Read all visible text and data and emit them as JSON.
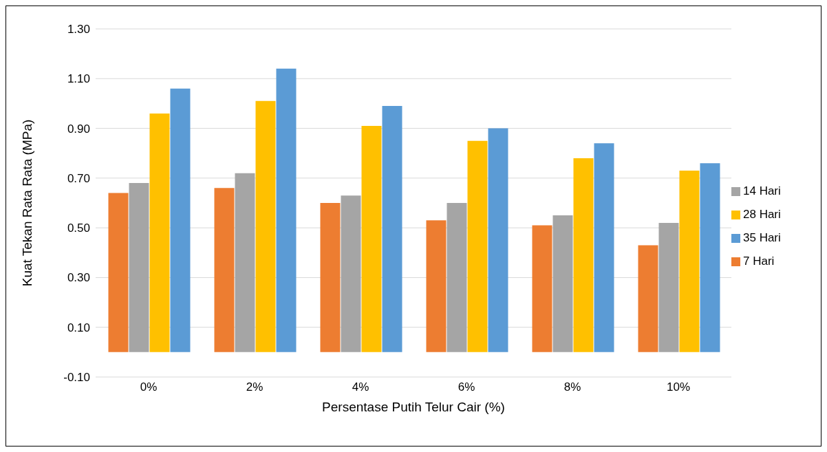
{
  "chart_data": {
    "type": "bar",
    "xlabel": "Persentase Putih Telur Cair (%)",
    "ylabel": "Kuat Tekan Rata Rata (MPa)",
    "categories": [
      "0%",
      "2%",
      "4%",
      "6%",
      "8%",
      "10%"
    ],
    "series": [
      {
        "name": "7 Hari",
        "color": "#ed7d31",
        "values": [
          0.64,
          0.66,
          0.6,
          0.53,
          0.51,
          0.43
        ]
      },
      {
        "name": "14 Hari",
        "color": "#a5a5a5",
        "values": [
          0.68,
          0.72,
          0.63,
          0.6,
          0.55,
          0.52
        ]
      },
      {
        "name": "28 Hari",
        "color": "#ffc000",
        "values": [
          0.96,
          1.01,
          0.91,
          0.85,
          0.78,
          0.73
        ]
      },
      {
        "name": "35 Hari",
        "color": "#5b9bd5",
        "values": [
          1.06,
          1.14,
          0.99,
          0.9,
          0.84,
          0.76
        ]
      }
    ],
    "ylim": [
      -0.1,
      1.3
    ],
    "yticks": [
      {
        "value": -0.1,
        "label": "-0.10"
      },
      {
        "value": 0.1,
        "label": "0.10"
      },
      {
        "value": 0.3,
        "label": "0.30"
      },
      {
        "value": 0.5,
        "label": "0.50"
      },
      {
        "value": 0.7,
        "label": "0.70"
      },
      {
        "value": 0.9,
        "label": "0.90"
      },
      {
        "value": 1.1,
        "label": "1.10"
      },
      {
        "value": 1.3,
        "label": "1.30"
      }
    ],
    "grid": "y",
    "legend": "right"
  }
}
